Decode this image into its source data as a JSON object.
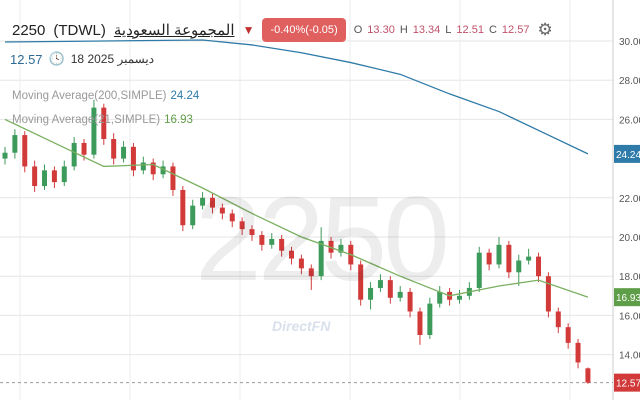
{
  "header": {
    "symbol": "2250",
    "exchange": "(TDWL)",
    "name": "المجموعة السعودية",
    "change": "-0.40%(-0.05)",
    "o_label": "O",
    "o": "13.30",
    "h_label": "H",
    "h": "13.34",
    "l_label": "L",
    "l": "12.51",
    "c_label": "C",
    "c": "12.57",
    "last": "12.57",
    "date": "ديسمبر 2025 18"
  },
  "indicators": [
    {
      "label": "Moving Average(200,SIMPLE)",
      "value": "24.24",
      "color": "#2e7aa8"
    },
    {
      "label": "Moving Average(21,SIMPLE)",
      "value": "16.93",
      "color": "#5f9e48"
    }
  ],
  "watermark": "2250",
  "watermark_brand": "DirectFN",
  "colors": {
    "up": "#3c9a5a",
    "down": "#d23a3a",
    "ma200": "#2e7aa8",
    "ma21": "#7ab060",
    "last_price": "#d23a3a"
  },
  "chart_data": {
    "type": "candlestick",
    "ylim": [
      12,
      31
    ],
    "y_ticks": [
      "30.00",
      "28.00",
      "26.00",
      "22.00",
      "20.00",
      "18.00",
      "16.00",
      "14.00"
    ],
    "price_labels": [
      {
        "text": "24.24",
        "value": 24.24,
        "color": "#2e7aa8"
      },
      {
        "text": "16.93",
        "value": 16.93,
        "color": "#5f9e48"
      },
      {
        "text": "12.57",
        "value": 12.57,
        "color": "#d23a3a"
      }
    ],
    "candles": [
      [
        24.0,
        24.6,
        23.7,
        24.3
      ],
      [
        24.3,
        25.5,
        24.0,
        25.2
      ],
      [
        25.2,
        25.4,
        23.3,
        23.6
      ],
      [
        23.6,
        23.9,
        22.3,
        22.6
      ],
      [
        22.6,
        23.7,
        22.4,
        23.4
      ],
      [
        23.4,
        23.6,
        22.5,
        22.8
      ],
      [
        22.8,
        23.9,
        22.6,
        23.6
      ],
      [
        23.6,
        25.1,
        23.4,
        24.8
      ],
      [
        24.8,
        25.0,
        23.9,
        24.2
      ],
      [
        24.2,
        27.0,
        24.0,
        26.6
      ],
      [
        26.6,
        26.8,
        24.7,
        25.0
      ],
      [
        25.0,
        25.3,
        23.7,
        24.0
      ],
      [
        24.0,
        24.9,
        23.8,
        24.6
      ],
      [
        24.6,
        24.8,
        23.1,
        23.4
      ],
      [
        23.4,
        24.1,
        23.2,
        23.8
      ],
      [
        23.8,
        24.0,
        22.9,
        23.2
      ],
      [
        23.2,
        23.9,
        23.0,
        23.6
      ],
      [
        23.6,
        23.8,
        22.1,
        22.4
      ],
      [
        22.4,
        22.6,
        20.3,
        20.6
      ],
      [
        20.6,
        21.9,
        20.4,
        21.6
      ],
      [
        21.6,
        22.3,
        21.4,
        22.0
      ],
      [
        22.0,
        22.2,
        21.2,
        21.5
      ],
      [
        21.5,
        21.7,
        20.9,
        21.2
      ],
      [
        21.2,
        21.4,
        20.5,
        20.8
      ],
      [
        20.8,
        21.0,
        20.1,
        20.4
      ],
      [
        20.4,
        20.6,
        19.8,
        20.1
      ],
      [
        20.1,
        20.3,
        19.3,
        19.6
      ],
      [
        19.6,
        20.2,
        19.4,
        19.9
      ],
      [
        19.9,
        20.1,
        19.0,
        19.3
      ],
      [
        19.3,
        19.5,
        18.6,
        18.9
      ],
      [
        18.9,
        19.1,
        18.1,
        18.4
      ],
      [
        18.4,
        18.6,
        17.3,
        18.0
      ],
      [
        18.0,
        20.5,
        17.8,
        19.8
      ],
      [
        19.8,
        20.0,
        18.9,
        19.2
      ],
      [
        19.2,
        19.9,
        19.0,
        19.6
      ],
      [
        19.6,
        19.8,
        18.3,
        18.6
      ],
      [
        18.6,
        18.8,
        16.5,
        16.8
      ],
      [
        16.8,
        17.7,
        16.3,
        17.4
      ],
      [
        17.4,
        18.1,
        17.2,
        17.8
      ],
      [
        17.8,
        18.0,
        16.6,
        16.9
      ],
      [
        16.9,
        17.5,
        16.7,
        17.2
      ],
      [
        17.2,
        17.4,
        15.9,
        16.2
      ],
      [
        16.2,
        16.4,
        14.5,
        15.0
      ],
      [
        15.0,
        16.9,
        14.8,
        16.6
      ],
      [
        16.6,
        17.5,
        16.4,
        17.2
      ],
      [
        17.2,
        17.4,
        16.5,
        16.8
      ],
      [
        16.8,
        17.3,
        16.6,
        17.0
      ],
      [
        17.0,
        17.7,
        16.8,
        17.4
      ],
      [
        17.4,
        19.5,
        17.2,
        19.2
      ],
      [
        19.2,
        19.4,
        18.3,
        18.6
      ],
      [
        18.6,
        20.0,
        18.4,
        19.6
      ],
      [
        19.6,
        19.8,
        17.9,
        18.2
      ],
      [
        18.2,
        19.1,
        17.5,
        18.8
      ],
      [
        18.8,
        19.4,
        18.6,
        19.0
      ],
      [
        19.0,
        19.2,
        17.7,
        18.0
      ],
      [
        18.0,
        18.2,
        15.9,
        16.2
      ],
      [
        16.2,
        16.4,
        15.1,
        15.4
      ],
      [
        15.4,
        15.6,
        14.3,
        14.6
      ],
      [
        14.6,
        14.8,
        13.3,
        13.6
      ],
      [
        13.3,
        13.34,
        12.51,
        12.57
      ]
    ],
    "ma200": [
      [
        0,
        29.95
      ],
      [
        10,
        30.0
      ],
      [
        20,
        30.05
      ],
      [
        25,
        29.8
      ],
      [
        30,
        29.4
      ],
      [
        35,
        28.9
      ],
      [
        40,
        28.3
      ],
      [
        45,
        27.3
      ],
      [
        50,
        26.4
      ],
      [
        55,
        25.2
      ],
      [
        59,
        24.24
      ]
    ],
    "ma21": [
      [
        0,
        26.0
      ],
      [
        5,
        24.8
      ],
      [
        10,
        23.6
      ],
      [
        15,
        23.7
      ],
      [
        20,
        22.5
      ],
      [
        25,
        21.2
      ],
      [
        30,
        20.0
      ],
      [
        35,
        19.1
      ],
      [
        40,
        18.0
      ],
      [
        45,
        17.0
      ],
      [
        50,
        17.5
      ],
      [
        54,
        17.8
      ],
      [
        59,
        16.93
      ]
    ]
  }
}
